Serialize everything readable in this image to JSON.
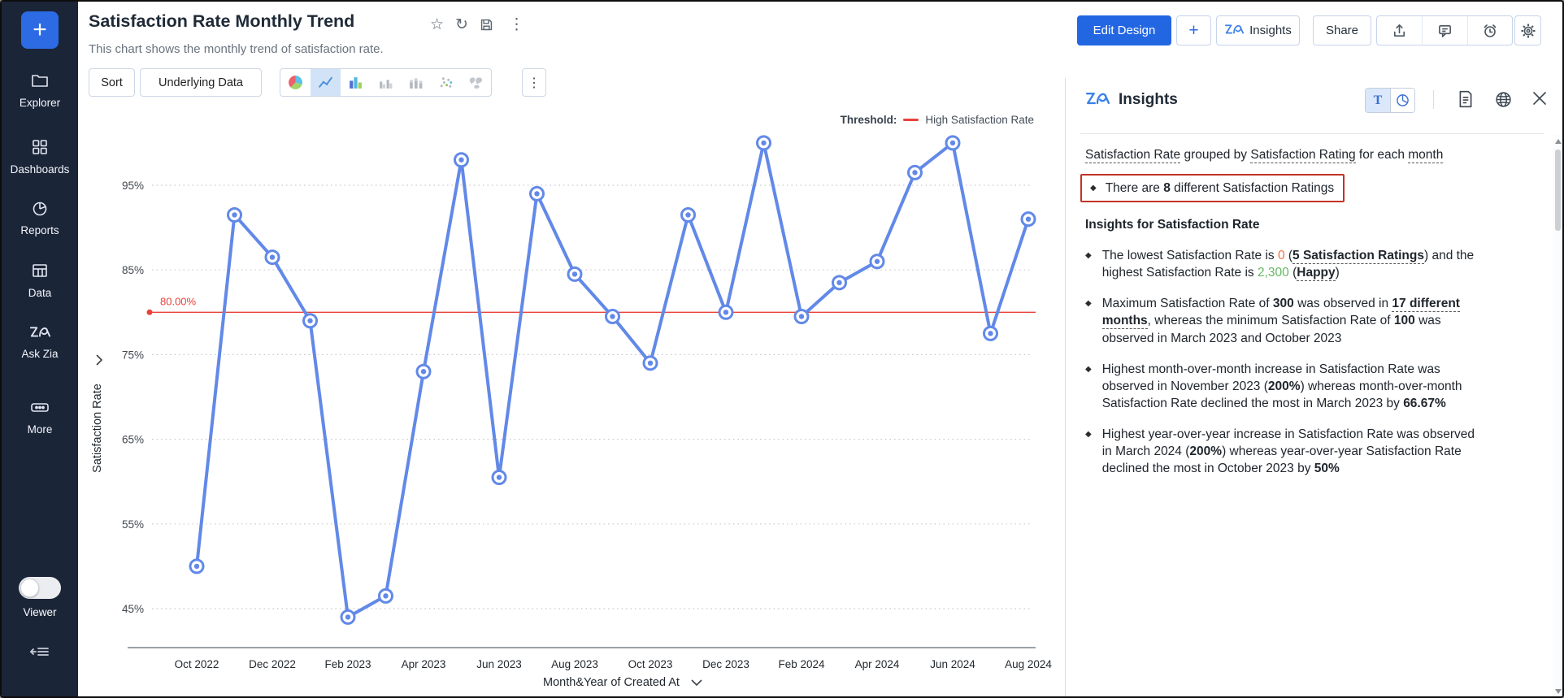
{
  "colors": {
    "accent_blue": "#2d6be4",
    "edit_button_blue": "#2366e2",
    "line_blue": "#6289e8",
    "threshold_red": "#e8423a",
    "sidebar_bg": "#1b2538",
    "selected_tool_bg": "#d2e3f8",
    "highlight_border_red": "#c33325",
    "insight_low_orange": "#ee7145",
    "insight_high_green": "#63b863"
  },
  "sidebar": {
    "plus_label": "+",
    "items": [
      {
        "label": "Explorer",
        "icon": "folder-icon"
      },
      {
        "label": "Dashboards",
        "icon": "grid-icon"
      },
      {
        "label": "Reports",
        "icon": "reports-pie-icon"
      },
      {
        "label": "Data",
        "icon": "table-icon"
      },
      {
        "label": "Ask Zia",
        "icon": "zia-icon"
      },
      {
        "label": "More",
        "icon": "ellipsis-icon"
      }
    ],
    "viewer_label": "Viewer"
  },
  "header": {
    "title": "Satisfaction Rate Monthly Trend",
    "subtitle": "This chart shows the monthly trend of satisfaction rate.",
    "edit_design": "Edit Design",
    "plus": "+",
    "insights": "Insights",
    "share": "Share",
    "title_icons": [
      "star-icon",
      "refresh-icon",
      "save-icon",
      "kebab-icon"
    ],
    "right_icons": [
      "export-icon",
      "comment-icon",
      "alert-icon",
      "settings-icon"
    ]
  },
  "toolbar": {
    "sort": "Sort",
    "underlying_data": "Underlying Data",
    "chart_types": [
      {
        "icon": "pie-chart-icon",
        "selected": false
      },
      {
        "icon": "line-chart-icon",
        "selected": true
      },
      {
        "icon": "bar-chart-icon",
        "selected": false
      },
      {
        "icon": "clustered-bar-icon",
        "selected": false
      },
      {
        "icon": "stacked-bar-icon",
        "selected": false
      },
      {
        "icon": "scatter-plot-icon",
        "selected": false
      },
      {
        "icon": "map-chart-icon",
        "selected": false
      }
    ],
    "more": "⋮"
  },
  "chart_data": {
    "type": "line",
    "title": "Satisfaction Rate Monthly Trend",
    "x": [
      "Oct 2022",
      "Nov 2022",
      "Dec 2022",
      "Jan 2023",
      "Feb 2023",
      "Mar 2023",
      "Apr 2023",
      "May 2023",
      "Jun 2023",
      "Jul 2023",
      "Aug 2023",
      "Sep 2023",
      "Oct 2023",
      "Nov 2023",
      "Dec 2023",
      "Jan 2024",
      "Feb 2024",
      "Mar 2024",
      "Apr 2024",
      "May 2024",
      "Jun 2024",
      "Jul 2024",
      "Aug 2024"
    ],
    "values": [
      50,
      91.5,
      86.5,
      79,
      44,
      46.5,
      73,
      98,
      60.5,
      94,
      84.5,
      79.5,
      74,
      91.5,
      80,
      100,
      79.5,
      83.5,
      86,
      96.5,
      100,
      77.5,
      91
    ],
    "x_tick_labels": [
      "Oct 2022",
      "Dec 2022",
      "Feb 2023",
      "Apr 2023",
      "Jun 2023",
      "Aug 2023",
      "Oct 2023",
      "Dec 2023",
      "Feb 2024",
      "Apr 2024",
      "Jun 2024",
      "Aug 2024"
    ],
    "ytick_labels": [
      "95%",
      "85%",
      "75%",
      "65%",
      "55%",
      "45%"
    ],
    "yticks": [
      95,
      85,
      75,
      65,
      55,
      45
    ],
    "ylim": [
      40,
      102
    ],
    "grid": true,
    "xlabel": "Month&Year of Created At",
    "ylabel": "Satisfaction Rate",
    "line_color": "#6289e8",
    "legend_position": "top-right",
    "threshold": {
      "value": 80,
      "label": "80.00%",
      "legend_title": "Threshold:",
      "legend": "High Satisfaction Rate",
      "color": "#e8423a"
    }
  },
  "panel": {
    "title": "Insights",
    "text_tool_label": "T",
    "tools": [
      "text-view-toggle",
      "chart-view-toggle",
      "summary-doc-icon",
      "globe-icon",
      "close-icon"
    ],
    "bullet_char": "◆",
    "summary_segments": [
      {
        "t": "Satisfaction Rate",
        "u": true
      },
      {
        "t": " grouped by "
      },
      {
        "t": "Satisfaction Rating",
        "u": true
      },
      {
        "t": " for each "
      },
      {
        "t": "month",
        "u": true
      }
    ],
    "highlight_segments": [
      {
        "t": "There are "
      },
      {
        "t": "8",
        "b": true
      },
      {
        "t": " different Satisfaction Ratings"
      }
    ],
    "section_title": "Insights for Satisfaction Rate",
    "bullets": [
      {
        "segments": [
          {
            "t": "The lowest Satisfaction Rate is "
          },
          {
            "t": "0",
            "c": "#ee7145"
          },
          {
            "t": " ("
          },
          {
            "t": "5 Satisfaction Ratings",
            "b": true,
            "u": true
          },
          {
            "t": ") and the highest Satisfaction Rate is "
          },
          {
            "t": "2,300",
            "c": "#63b863"
          },
          {
            "t": " ("
          },
          {
            "t": "Happy",
            "b": true,
            "u": true
          },
          {
            "t": ")"
          }
        ]
      },
      {
        "segments": [
          {
            "t": "Maximum Satisfaction Rate of "
          },
          {
            "t": "300",
            "b": true
          },
          {
            "t": " was observed in "
          },
          {
            "t": "17 different months",
            "b": true,
            "u": true
          },
          {
            "t": ", whereas the minimum Satisfaction Rate of "
          },
          {
            "t": "100",
            "b": true
          },
          {
            "t": " was observed in March 2023 and October 2023"
          }
        ]
      },
      {
        "segments": [
          {
            "t": "Highest month-over-month increase in Satisfaction Rate was observed in November 2023 ("
          },
          {
            "t": "200%",
            "b": true
          },
          {
            "t": ") whereas month-over-month Satisfaction Rate declined the most in March 2023 by "
          },
          {
            "t": "66.67%",
            "b": true
          }
        ]
      },
      {
        "segments": [
          {
            "t": "Highest year-over-year increase in Satisfaction Rate was observed in March 2024 ("
          },
          {
            "t": "200%",
            "b": true
          },
          {
            "t": ") whereas year-over-year Satisfaction Rate declined the most in October 2023 by "
          },
          {
            "t": "50%",
            "b": true
          }
        ]
      }
    ]
  }
}
